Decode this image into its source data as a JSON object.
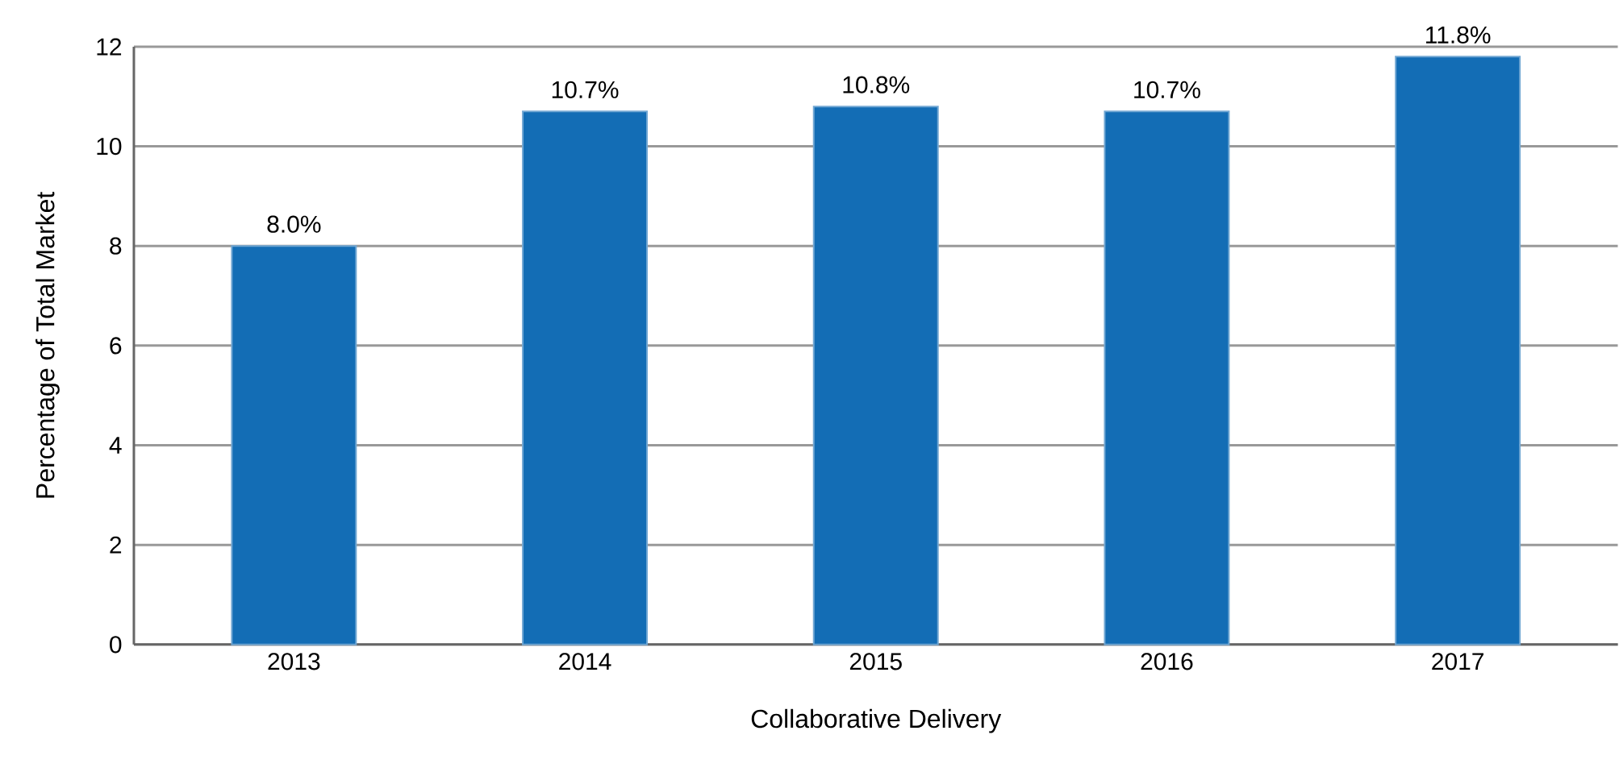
{
  "chart_data": {
    "type": "bar",
    "xlabel": "Collaborative Delivery",
    "ylabel": "Percentage of Total Market",
    "categories": [
      "2013",
      "2014",
      "2015",
      "2016",
      "2017"
    ],
    "values": [
      8.0,
      10.7,
      10.8,
      10.7,
      11.8
    ],
    "value_labels": [
      "8.0%",
      "10.7%",
      "10.8%",
      "10.7%",
      "11.8%"
    ],
    "color": "#136db5",
    "ylim": [
      0,
      12
    ],
    "yticks": [
      0,
      2,
      4,
      6,
      8,
      10,
      12
    ],
    "grid": "y"
  }
}
